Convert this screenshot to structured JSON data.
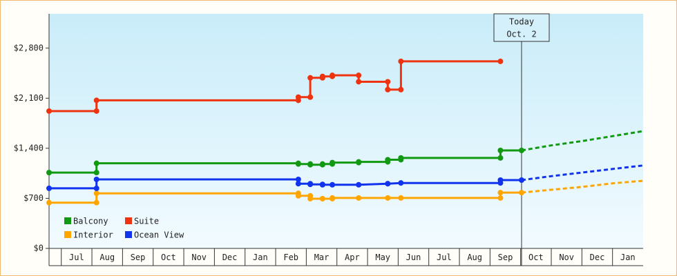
{
  "chart_data": {
    "type": "line",
    "ylim": [
      0,
      3280
    ],
    "yticks": [
      {
        "value": 0,
        "label": "$0"
      },
      {
        "value": 700,
        "label": "$700"
      },
      {
        "value": 1400,
        "label": "$1,400"
      },
      {
        "value": 2100,
        "label": "$2,100"
      },
      {
        "value": 2800,
        "label": "$2,800"
      }
    ],
    "xlim": [
      0.6,
      20
    ],
    "xticks": [
      {
        "value": 1,
        "label": "Jul"
      },
      {
        "value": 2,
        "label": "Aug"
      },
      {
        "value": 3,
        "label": "Sep"
      },
      {
        "value": 4,
        "label": "Oct"
      },
      {
        "value": 5,
        "label": "Nov"
      },
      {
        "value": 6,
        "label": "Dec"
      },
      {
        "value": 7,
        "label": "Jan"
      },
      {
        "value": 8,
        "label": "Feb"
      },
      {
        "value": 9,
        "label": "Mar"
      },
      {
        "value": 10,
        "label": "Apr"
      },
      {
        "value": 11,
        "label": "May"
      },
      {
        "value": 12,
        "label": "Jun"
      },
      {
        "value": 13,
        "label": "Jul"
      },
      {
        "value": 14,
        "label": "Aug"
      },
      {
        "value": 15,
        "label": "Sep"
      },
      {
        "value": 16,
        "label": "Oct"
      },
      {
        "value": 17,
        "label": "Nov"
      },
      {
        "value": 18,
        "label": "Dec"
      },
      {
        "value": 19,
        "label": "Jan"
      }
    ],
    "grid": true,
    "annotation": {
      "x": 16.03,
      "label": [
        "Today",
        "Oct. 2"
      ]
    },
    "series": [
      {
        "name": "Balcony",
        "color": "#119911",
        "x": [
          0.6,
          2.15,
          2.15,
          8.74,
          8.74,
          9.13,
          9.13,
          9.53,
          9.53,
          9.85,
          9.85,
          10.71,
          10.71,
          11.66,
          11.66,
          12.09,
          12.09,
          15.34,
          15.34,
          16.03
        ],
        "values": [
          1060,
          1060,
          1190,
          1190,
          1180,
          1180,
          1170,
          1170,
          1180,
          1180,
          1200,
          1200,
          1210,
          1210,
          1240,
          1240,
          1265,
          1265,
          1370,
          1370
        ],
        "projection": {
          "x": [
            16.03,
            17,
            18,
            19,
            20
          ],
          "values": [
            1370,
            1440,
            1500,
            1570,
            1640
          ]
        }
      },
      {
        "name": "Suite",
        "color": "#ee3311",
        "x": [
          0.6,
          2.15,
          2.15,
          8.74,
          8.74,
          9.13,
          9.13,
          9.53,
          9.53,
          9.85,
          9.85,
          10.71,
          10.71,
          11.66,
          11.66,
          12.09,
          12.09,
          15.34
        ],
        "values": [
          1920,
          1920,
          2070,
          2070,
          2115,
          2115,
          2385,
          2385,
          2405,
          2405,
          2420,
          2420,
          2330,
          2330,
          2220,
          2220,
          2615,
          2615
        ]
      },
      {
        "name": "Interior",
        "color": "#ffa500",
        "x": [
          0.6,
          2.15,
          2.15,
          8.74,
          8.74,
          9.13,
          9.13,
          9.53,
          9.53,
          9.85,
          9.85,
          10.71,
          11.66,
          12.09,
          15.34,
          15.34,
          16.03
        ],
        "values": [
          640,
          640,
          770,
          770,
          735,
          735,
          695,
          695,
          695,
          695,
          705,
          705,
          705,
          705,
          705,
          780,
          780
        ],
        "projection": {
          "x": [
            16.03,
            17,
            18,
            19,
            20
          ],
          "values": [
            780,
            820,
            860,
            910,
            945
          ]
        }
      },
      {
        "name": "Ocean View",
        "color": "#1133ee",
        "x": [
          0.6,
          2.15,
          2.15,
          8.74,
          8.74,
          9.13,
          9.13,
          9.53,
          9.53,
          9.85,
          10.71,
          11.66,
          11.66,
          12.09,
          15.34,
          15.34,
          16.03
        ],
        "values": [
          840,
          840,
          965,
          965,
          905,
          905,
          895,
          895,
          890,
          890,
          890,
          905,
          905,
          915,
          915,
          955,
          955
        ],
        "projection": {
          "x": [
            16.03,
            17,
            18,
            19,
            20
          ],
          "values": [
            955,
            1010,
            1060,
            1110,
            1160
          ]
        }
      }
    ]
  }
}
